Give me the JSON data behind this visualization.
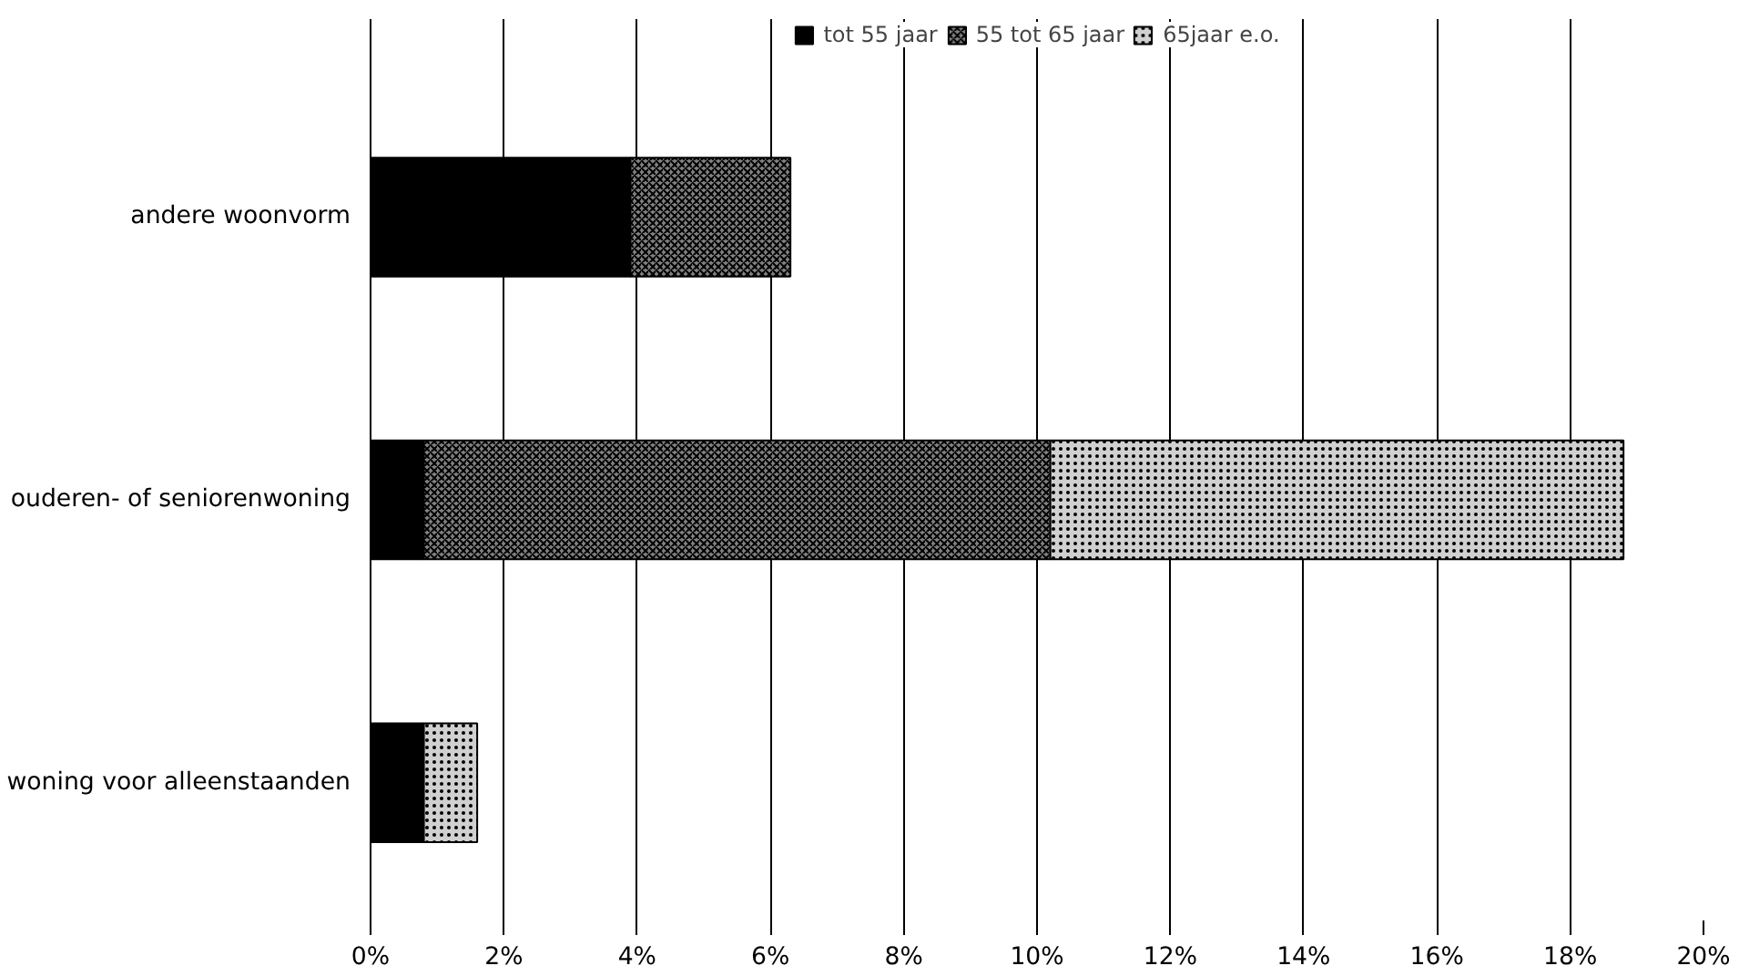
{
  "chart_data": {
    "type": "bar",
    "orientation": "horizontal",
    "stacked": true,
    "categories": [
      "andere woonvorm",
      "ouderen- of seniorenwoning",
      "woning voor alleenstaanden"
    ],
    "series": [
      {
        "name": "tot 55 jaar",
        "color": "#000000",
        "values": [
          3.9,
          0.8,
          0.8
        ]
      },
      {
        "name": "55 tot 65 jaar",
        "color": "#808080",
        "values": [
          2.4,
          9.4,
          null
        ]
      },
      {
        "name": "65jaar e.o.",
        "color": "#d0d0d0",
        "values": [
          null,
          8.6,
          0.8
        ]
      }
    ],
    "xlim": [
      0,
      20
    ],
    "xticks": [
      {
        "value": 0,
        "label": "0%"
      },
      {
        "value": 2,
        "label": "2%"
      },
      {
        "value": 4,
        "label": "4%"
      },
      {
        "value": 6,
        "label": "6%"
      },
      {
        "value": 8,
        "label": "8%"
      },
      {
        "value": 10,
        "label": "10%"
      },
      {
        "value": 12,
        "label": "12%"
      },
      {
        "value": 14,
        "label": "14%"
      },
      {
        "value": 16,
        "label": "16%"
      },
      {
        "value": 18,
        "label": "18%"
      },
      {
        "value": 20,
        "label": "20%"
      }
    ],
    "grid": "x",
    "legend": "top"
  }
}
